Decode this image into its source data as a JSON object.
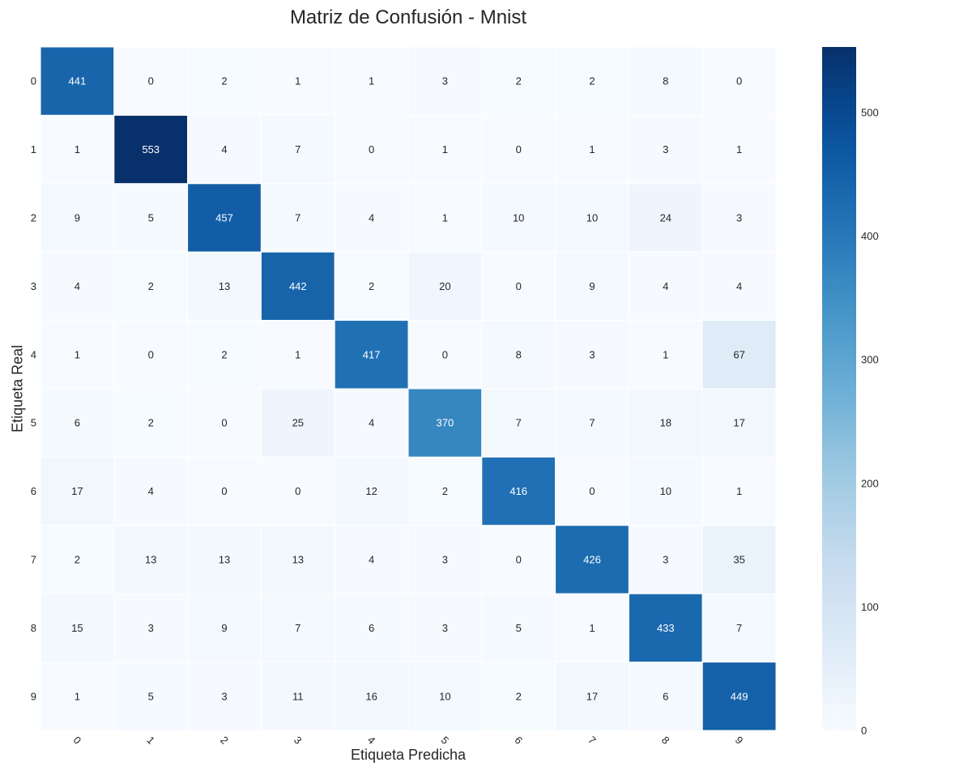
{
  "chart_data": {
    "type": "heatmap",
    "title": "Matriz de Confusión - Mnist",
    "xlabel": "Etiqueta Predicha",
    "ylabel": "Etiqueta Real",
    "x_categories": [
      "0",
      "1",
      "2",
      "3",
      "4",
      "5",
      "6",
      "7",
      "8",
      "9"
    ],
    "y_categories": [
      "0",
      "1",
      "2",
      "3",
      "4",
      "5",
      "6",
      "7",
      "8",
      "9"
    ],
    "values": [
      [
        441,
        0,
        2,
        1,
        1,
        3,
        2,
        2,
        8,
        0
      ],
      [
        1,
        553,
        4,
        7,
        0,
        1,
        0,
        1,
        3,
        1
      ],
      [
        9,
        5,
        457,
        7,
        4,
        1,
        10,
        10,
        24,
        3
      ],
      [
        4,
        2,
        13,
        442,
        2,
        20,
        0,
        9,
        4,
        4
      ],
      [
        1,
        0,
        2,
        1,
        417,
        0,
        8,
        3,
        1,
        67
      ],
      [
        6,
        2,
        0,
        25,
        4,
        370,
        7,
        7,
        18,
        17
      ],
      [
        17,
        4,
        0,
        0,
        12,
        2,
        416,
        0,
        10,
        1
      ],
      [
        2,
        13,
        13,
        13,
        4,
        3,
        0,
        426,
        3,
        35
      ],
      [
        15,
        3,
        9,
        7,
        6,
        3,
        5,
        1,
        433,
        7
      ],
      [
        1,
        5,
        3,
        11,
        16,
        10,
        2,
        17,
        6,
        449
      ]
    ],
    "colorbar": {
      "cmap": "Blues",
      "min": 0,
      "max": 553,
      "ticks": [
        0,
        100,
        200,
        300,
        400,
        500
      ]
    },
    "x_tick_rotation_deg": 45
  }
}
